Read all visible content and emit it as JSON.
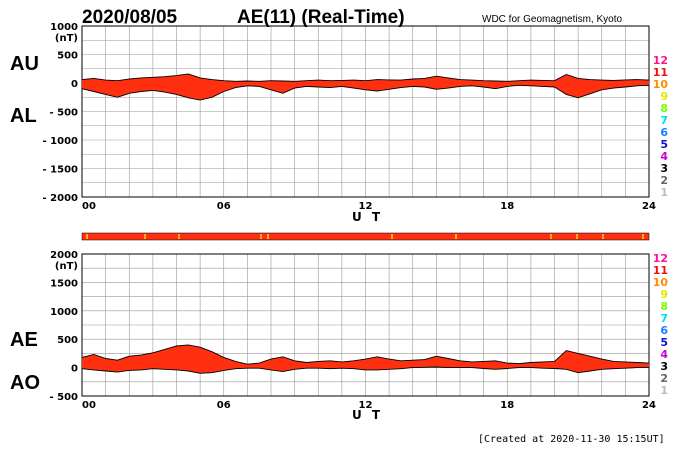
{
  "header": {
    "date": "2020/08/05",
    "title": "AE(11) (Real-Time)",
    "credit": "WDC for Geomagnetism, Kyoto"
  },
  "footer": "[Created at 2020-11-30 15:15UT]",
  "colors": {
    "fill": "#ff3010",
    "grid": "#999999",
    "line": "#000000"
  },
  "legend": [
    {
      "label": "12",
      "color": "#ff1493"
    },
    {
      "label": "11",
      "color": "#ee1111"
    },
    {
      "label": "10",
      "color": "#ff8c00"
    },
    {
      "label": "9",
      "color": "#e6e600"
    },
    {
      "label": "8",
      "color": "#7cfc00"
    },
    {
      "label": "7",
      "color": "#00dddd"
    },
    {
      "label": "6",
      "color": "#1e7fff"
    },
    {
      "label": "5",
      "color": "#1010d0"
    },
    {
      "label": "4",
      "color": "#cc00cc"
    },
    {
      "label": "3",
      "color": "#000000"
    },
    {
      "label": "2",
      "color": "#666666"
    },
    {
      "label": "1",
      "color": "#bbbbbb"
    }
  ],
  "chart_data": [
    {
      "type": "area",
      "upper_label": "AU",
      "lower_label": "AL",
      "yunit": "(nT)",
      "xlabel": "U T",
      "xlim": [
        0,
        24
      ],
      "ylim": [
        -2000,
        1000
      ],
      "yticks": [
        1000,
        500,
        0,
        -500,
        -1000,
        -1500,
        -2000
      ],
      "ytick_labels": [
        "1000",
        "500",
        "0",
        "- 500",
        "- 1000",
        "- 1500",
        "- 2000"
      ],
      "xticks": [
        0,
        6,
        12,
        18,
        24
      ],
      "xtick_labels": [
        "00",
        "06",
        "12",
        "18",
        "24"
      ],
      "series": [
        {
          "name": "AU",
          "x": [
            0,
            0.5,
            1,
            1.5,
            2,
            2.5,
            3,
            3.5,
            4,
            4.5,
            5,
            5.5,
            6,
            6.5,
            7,
            7.5,
            8,
            8.5,
            9,
            9.5,
            10,
            10.5,
            11,
            11.5,
            12,
            12.5,
            13,
            13.5,
            14,
            14.5,
            15,
            15.5,
            16,
            16.5,
            17,
            17.5,
            18,
            18.5,
            19,
            19.5,
            20,
            20.5,
            21,
            21.5,
            22,
            22.5,
            23,
            23.5,
            24
          ],
          "values": [
            60,
            80,
            50,
            40,
            70,
            90,
            100,
            110,
            130,
            160,
            90,
            60,
            40,
            30,
            35,
            30,
            40,
            35,
            30,
            40,
            50,
            40,
            45,
            50,
            40,
            60,
            55,
            50,
            70,
            80,
            120,
            90,
            60,
            50,
            40,
            35,
            30,
            40,
            50,
            45,
            40,
            150,
            80,
            60,
            50,
            45,
            55,
            60,
            50
          ]
        },
        {
          "name": "AL",
          "x": [
            0,
            0.5,
            1,
            1.5,
            2,
            2.5,
            3,
            3.5,
            4,
            4.5,
            5,
            5.5,
            6,
            6.5,
            7,
            7.5,
            8,
            8.5,
            9,
            9.5,
            10,
            10.5,
            11,
            11.5,
            12,
            12.5,
            13,
            13.5,
            14,
            14.5,
            15,
            15.5,
            16,
            16.5,
            17,
            17.5,
            18,
            18.5,
            19,
            19.5,
            20,
            20.5,
            21,
            21.5,
            22,
            22.5,
            23,
            23.5,
            24
          ],
          "values": [
            -100,
            -150,
            -200,
            -250,
            -180,
            -150,
            -130,
            -160,
            -200,
            -260,
            -300,
            -250,
            -150,
            -80,
            -50,
            -60,
            -120,
            -180,
            -90,
            -60,
            -70,
            -80,
            -60,
            -90,
            -120,
            -140,
            -110,
            -80,
            -60,
            -70,
            -110,
            -90,
            -60,
            -50,
            -70,
            -100,
            -60,
            -40,
            -50,
            -60,
            -70,
            -200,
            -260,
            -190,
            -120,
            -90,
            -70,
            -50,
            -40
          ]
        }
      ]
    },
    {
      "type": "area",
      "upper_label": "AE",
      "lower_label": "AO",
      "yunit": "(nT)",
      "xlabel": "U T",
      "xlim": [
        0,
        24
      ],
      "ylim": [
        -500,
        2000
      ],
      "yticks": [
        2000,
        1500,
        1000,
        500,
        0,
        -500
      ],
      "ytick_labels": [
        "2000",
        "1500",
        "1000",
        "500",
        "0",
        "- 500"
      ],
      "xticks": [
        0,
        6,
        12,
        18,
        24
      ],
      "xtick_labels": [
        "00",
        "06",
        "12",
        "18",
        "24"
      ],
      "series": [
        {
          "name": "AE",
          "x": [
            0,
            0.5,
            1,
            1.5,
            2,
            2.5,
            3,
            3.5,
            4,
            4.5,
            5,
            5.5,
            6,
            6.5,
            7,
            7.5,
            8,
            8.5,
            9,
            9.5,
            10,
            10.5,
            11,
            11.5,
            12,
            12.5,
            13,
            13.5,
            14,
            14.5,
            15,
            15.5,
            16,
            16.5,
            17,
            17.5,
            18,
            18.5,
            19,
            19.5,
            20,
            20.5,
            21,
            21.5,
            22,
            22.5,
            23,
            23.5,
            24
          ],
          "values": [
            180,
            230,
            160,
            130,
            200,
            220,
            260,
            320,
            380,
            400,
            360,
            280,
            180,
            110,
            60,
            80,
            150,
            190,
            120,
            90,
            110,
            120,
            100,
            120,
            150,
            190,
            150,
            120,
            130,
            140,
            200,
            160,
            120,
            100,
            110,
            120,
            80,
            70,
            90,
            100,
            110,
            300,
            250,
            200,
            150,
            110,
            100,
            90,
            80
          ]
        },
        {
          "name": "AO",
          "x": [
            0,
            0.5,
            1,
            1.5,
            2,
            2.5,
            3,
            3.5,
            4,
            4.5,
            5,
            5.5,
            6,
            6.5,
            7,
            7.5,
            8,
            8.5,
            9,
            9.5,
            10,
            10.5,
            11,
            11.5,
            12,
            12.5,
            13,
            13.5,
            14,
            14.5,
            15,
            15.5,
            16,
            16.5,
            17,
            17.5,
            18,
            18.5,
            19,
            19.5,
            20,
            20.5,
            21,
            21.5,
            22,
            22.5,
            23,
            23.5,
            24
          ],
          "values": [
            -20,
            -40,
            -60,
            -80,
            -50,
            -40,
            -20,
            -30,
            -40,
            -60,
            -100,
            -90,
            -50,
            -20,
            -10,
            -10,
            -40,
            -70,
            -30,
            -10,
            -10,
            -20,
            -10,
            -20,
            -40,
            -40,
            -30,
            -20,
            0,
            5,
            10,
            0,
            0,
            0,
            -15,
            -30,
            -15,
            0,
            0,
            -10,
            -15,
            -30,
            -90,
            -60,
            -30,
            -20,
            -10,
            0,
            5
          ]
        }
      ]
    }
  ]
}
